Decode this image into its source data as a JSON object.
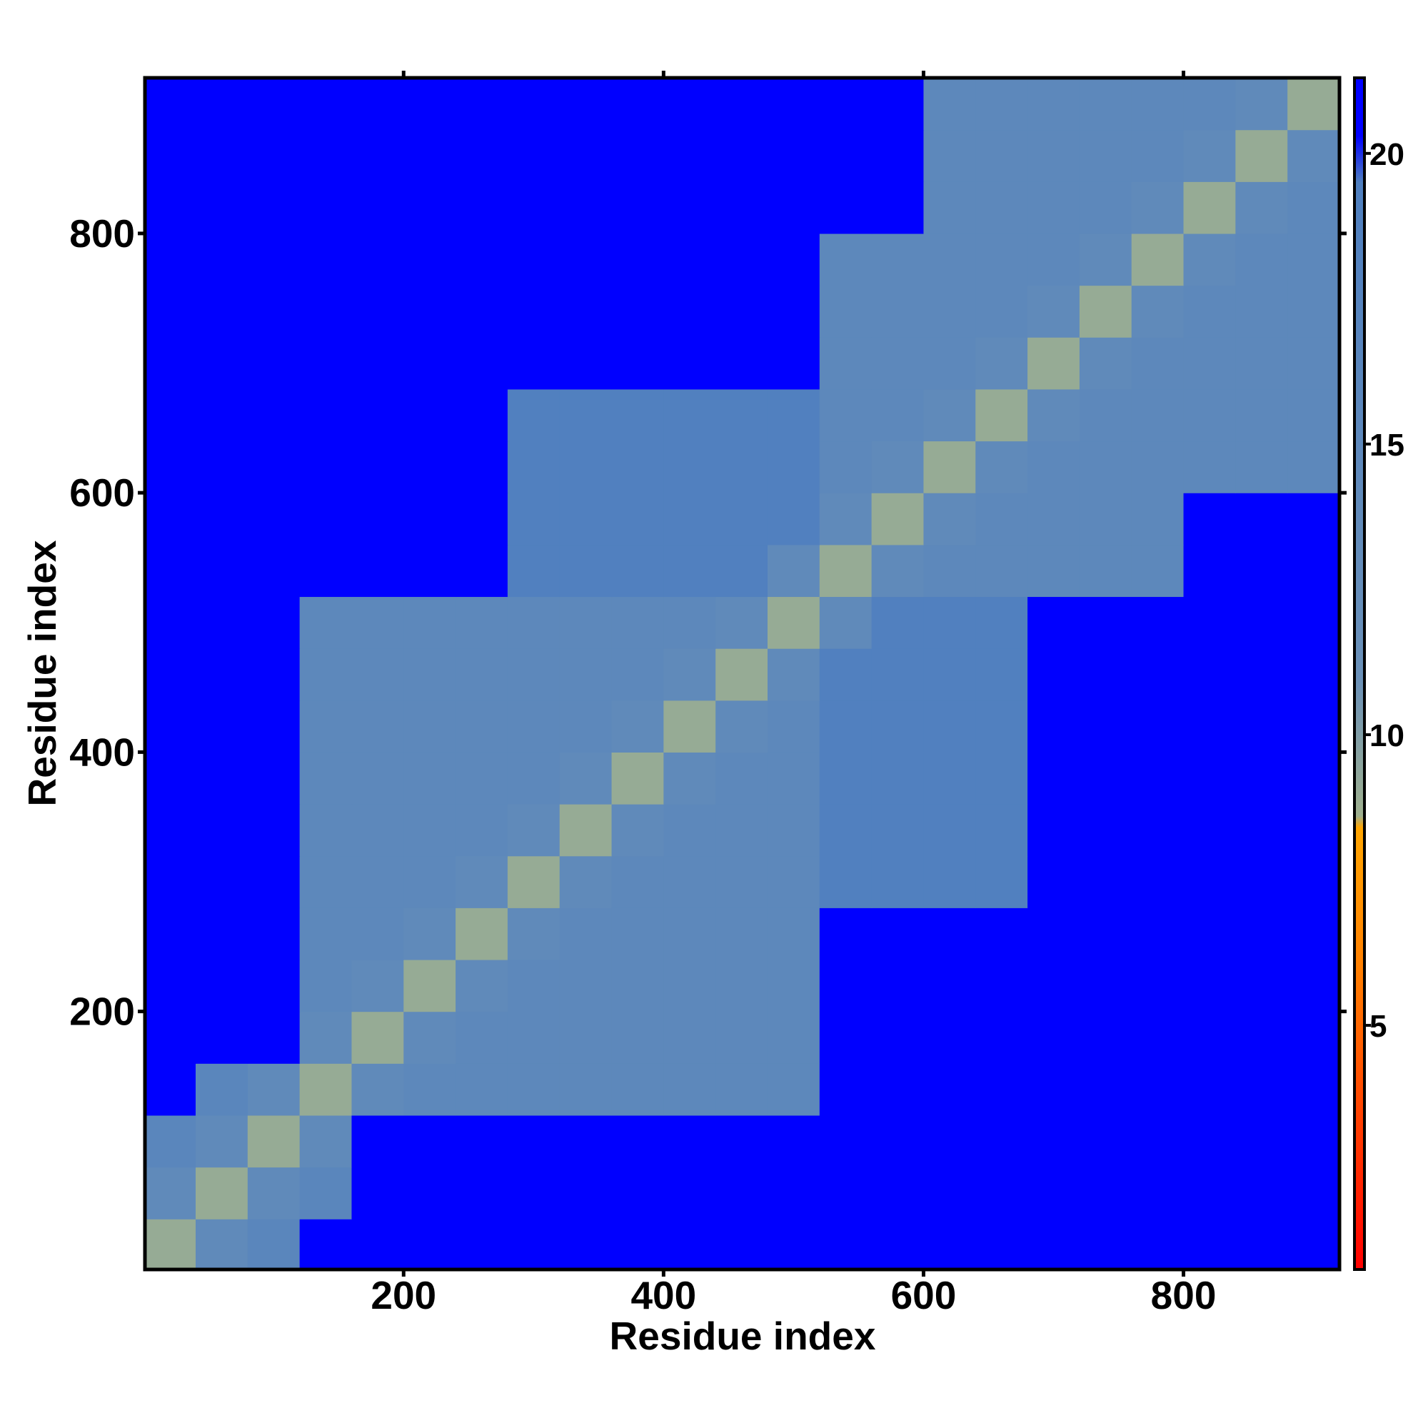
{
  "chart_data": {
    "type": "heatmap",
    "xlabel": "Residue index",
    "ylabel": "Residue index",
    "xlim": [
      1,
      920
    ],
    "ylim": [
      1,
      920
    ],
    "xticks": [
      200,
      400,
      600,
      800
    ],
    "yticks": [
      200,
      400,
      600,
      800
    ],
    "xbins": [
      0,
      40,
      80,
      120,
      160,
      200,
      240,
      280,
      320,
      360,
      400,
      440,
      480,
      520,
      560,
      600,
      640,
      680,
      720,
      760,
      800,
      840,
      880,
      920
    ],
    "ybins": [
      0,
      40,
      80,
      120,
      160,
      200,
      240,
      280,
      320,
      360,
      400,
      440,
      480,
      520,
      560,
      600,
      640,
      680,
      720,
      760,
      800,
      840,
      880,
      920
    ],
    "z": [
      [
        9,
        14,
        16,
        21,
        21,
        21,
        21,
        21,
        21,
        21,
        21,
        21,
        21,
        21,
        21,
        21,
        21,
        21,
        21,
        21,
        21,
        21,
        21
      ],
      [
        14,
        9,
        14,
        16,
        21,
        21,
        21,
        21,
        21,
        21,
        21,
        21,
        21,
        21,
        21,
        21,
        21,
        21,
        21,
        21,
        21,
        21,
        21
      ],
      [
        16,
        14,
        9,
        14,
        21,
        21,
        21,
        21,
        21,
        21,
        21,
        21,
        21,
        21,
        21,
        21,
        21,
        21,
        21,
        21,
        21,
        21,
        21
      ],
      [
        21,
        16,
        14,
        9,
        14,
        15,
        15,
        15,
        15,
        15,
        15,
        15,
        15,
        21,
        21,
        21,
        21,
        21,
        21,
        21,
        21,
        21,
        21
      ],
      [
        21,
        21,
        21,
        14,
        9,
        14,
        15,
        15,
        15,
        15,
        15,
        15,
        15,
        21,
        21,
        21,
        21,
        21,
        21,
        21,
        21,
        21,
        21
      ],
      [
        21,
        21,
        21,
        15,
        14,
        9,
        14,
        15,
        15,
        15,
        15,
        15,
        15,
        21,
        21,
        21,
        21,
        21,
        21,
        21,
        21,
        21,
        21
      ],
      [
        21,
        21,
        21,
        15,
        15,
        14,
        9,
        14,
        15,
        15,
        15,
        15,
        15,
        21,
        21,
        21,
        21,
        21,
        21,
        21,
        21,
        21,
        21
      ],
      [
        21,
        21,
        21,
        15,
        15,
        15,
        14,
        9,
        14,
        15,
        15,
        15,
        15,
        19,
        19,
        19,
        19,
        21,
        21,
        21,
        21,
        21,
        21
      ],
      [
        21,
        21,
        21,
        15,
        15,
        15,
        15,
        14,
        9,
        14,
        15,
        15,
        15,
        19,
        19,
        19,
        19,
        21,
        21,
        21,
        21,
        21,
        21
      ],
      [
        21,
        21,
        21,
        15,
        15,
        15,
        15,
        15,
        14,
        9,
        14,
        15,
        15,
        19,
        19,
        19,
        19,
        21,
        21,
        21,
        21,
        21,
        21
      ],
      [
        21,
        21,
        21,
        15,
        15,
        15,
        15,
        15,
        15,
        14,
        9,
        14,
        15,
        19,
        19,
        19,
        19,
        21,
        21,
        21,
        21,
        21,
        21
      ],
      [
        21,
        21,
        21,
        15,
        15,
        15,
        15,
        15,
        15,
        15,
        14,
        9,
        14,
        19,
        19,
        19,
        19,
        21,
        21,
        21,
        21,
        21,
        21
      ],
      [
        21,
        21,
        21,
        15,
        15,
        15,
        15,
        15,
        15,
        15,
        15,
        14,
        9,
        14,
        19,
        19,
        19,
        21,
        21,
        21,
        21,
        21,
        21
      ],
      [
        21,
        21,
        21,
        21,
        21,
        21,
        21,
        19,
        19,
        19,
        19,
        19,
        14,
        9,
        14,
        15,
        15,
        15,
        15,
        15,
        21,
        21,
        21
      ],
      [
        21,
        21,
        21,
        21,
        21,
        21,
        21,
        19,
        19,
        19,
        19,
        19,
        19,
        14,
        9,
        14,
        15,
        15,
        15,
        15,
        21,
        21,
        21
      ],
      [
        21,
        21,
        21,
        21,
        21,
        21,
        21,
        19,
        19,
        19,
        19,
        19,
        19,
        15,
        14,
        9,
        14,
        15,
        15,
        15,
        15,
        15,
        15
      ],
      [
        21,
        21,
        21,
        21,
        21,
        21,
        21,
        19,
        19,
        19,
        19,
        19,
        19,
        15,
        15,
        14,
        9,
        14,
        15,
        15,
        15,
        15,
        15
      ],
      [
        21,
        21,
        21,
        21,
        21,
        21,
        21,
        21,
        21,
        21,
        21,
        21,
        21,
        15,
        15,
        15,
        14,
        9,
        14,
        15,
        15,
        15,
        15
      ],
      [
        21,
        21,
        21,
        21,
        21,
        21,
        21,
        21,
        21,
        21,
        21,
        21,
        21,
        15,
        15,
        15,
        15,
        14,
        9,
        14,
        15,
        15,
        15
      ],
      [
        21,
        21,
        21,
        21,
        21,
        21,
        21,
        21,
        21,
        21,
        21,
        21,
        21,
        15,
        15,
        15,
        15,
        15,
        14,
        9,
        14,
        15,
        15
      ],
      [
        21,
        21,
        21,
        21,
        21,
        21,
        21,
        21,
        21,
        21,
        21,
        21,
        21,
        21,
        21,
        15,
        15,
        15,
        15,
        14,
        9,
        14,
        15
      ],
      [
        21,
        21,
        21,
        21,
        21,
        21,
        21,
        21,
        21,
        21,
        21,
        21,
        21,
        21,
        21,
        15,
        15,
        15,
        15,
        15,
        14,
        9,
        14
      ],
      [
        21,
        21,
        21,
        21,
        21,
        21,
        21,
        21,
        21,
        21,
        21,
        21,
        21,
        21,
        21,
        15,
        15,
        15,
        15,
        15,
        15,
        14,
        9
      ]
    ],
    "colorscale": [
      {
        "value": 0.8,
        "color": "#ff0000"
      },
      {
        "value": 6,
        "color": "#ff7f00"
      },
      {
        "value": 8.4,
        "color": "#ffa500"
      },
      {
        "value": 8.6,
        "color": "#9fb08e"
      },
      {
        "value": 11,
        "color": "#6a90b8"
      },
      {
        "value": 19.5,
        "color": "#4f7fbf"
      },
      {
        "value": 20.3,
        "color": "#0000ff"
      }
    ],
    "colorbar": {
      "lim": [
        0.8,
        21.3
      ],
      "ticks": [
        5,
        10,
        15,
        20
      ]
    }
  }
}
